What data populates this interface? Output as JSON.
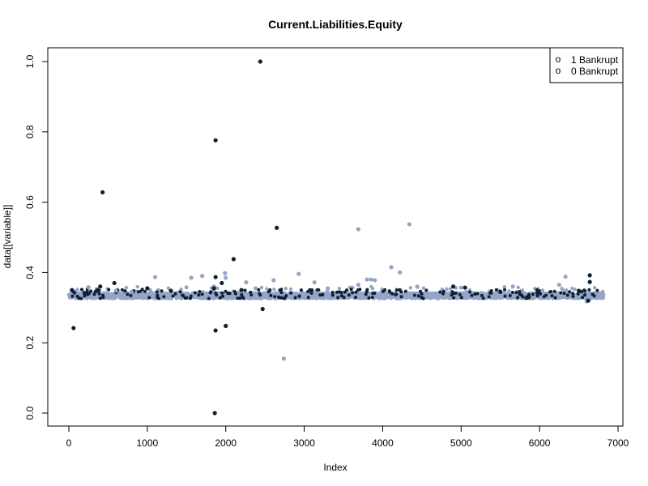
{
  "chart_data": {
    "type": "scatter",
    "title": "Current.Liabilities.Equity",
    "xlabel": "Index",
    "ylabel": "data[[variable]]",
    "xlim": [
      0,
      7000
    ],
    "ylim": [
      0,
      1
    ],
    "x_ticks": [
      0,
      1000,
      2000,
      3000,
      4000,
      5000,
      6000,
      7000
    ],
    "y_ticks": [
      0.0,
      0.2,
      0.4,
      0.6,
      0.8,
      1.0
    ],
    "y_tick_labels": [
      "0.0",
      "0.2",
      "0.4",
      "0.6",
      "0.8",
      "1.0"
    ],
    "grid": false,
    "legend_position": "top-right",
    "legend": [
      {
        "symbol": "o",
        "label": "1 Bankrupt"
      },
      {
        "symbol": "o",
        "label": "0 Bankrupt"
      }
    ],
    "n_points": 6819,
    "series": [
      {
        "label": "0 Bankrupt",
        "color": "#96a5c7",
        "baseline_band": [
          0.326,
          0.342
        ],
        "points": [
          [
            1100,
            0.387
          ],
          [
            1560,
            0.385
          ],
          [
            1700,
            0.39
          ],
          [
            1850,
            0.36
          ],
          [
            1990,
            0.398
          ],
          [
            2000,
            0.385
          ],
          [
            2260,
            0.372
          ],
          [
            2610,
            0.378
          ],
          [
            2740,
            0.155
          ],
          [
            2930,
            0.396
          ],
          [
            3130,
            0.372
          ],
          [
            3300,
            0.355
          ],
          [
            3690,
            0.523
          ],
          [
            3690,
            0.365
          ],
          [
            3800,
            0.38
          ],
          [
            3850,
            0.38
          ],
          [
            3900,
            0.378
          ],
          [
            4110,
            0.415
          ],
          [
            4220,
            0.4
          ],
          [
            4340,
            0.537
          ],
          [
            4440,
            0.36
          ],
          [
            5000,
            0.357
          ],
          [
            5660,
            0.36
          ],
          [
            6330,
            0.388
          ],
          [
            6250,
            0.365
          ],
          [
            6600,
            0.318
          ],
          [
            250,
            0.358
          ],
          [
            600,
            0.348
          ],
          [
            800,
            0.345
          ],
          [
            2380,
            0.355
          ]
        ]
      },
      {
        "label": "1 Bankrupt",
        "color": "#0b2230",
        "points": [
          [
            60,
            0.242
          ],
          [
            40,
            0.35
          ],
          [
            400,
            0.36
          ],
          [
            430,
            0.628
          ],
          [
            580,
            0.37
          ],
          [
            1000,
            0.355
          ],
          [
            1860,
            0.0
          ],
          [
            1870,
            0.235
          ],
          [
            1870,
            0.387
          ],
          [
            1870,
            0.776
          ],
          [
            1850,
            0.355
          ],
          [
            1950,
            0.37
          ],
          [
            2000,
            0.248
          ],
          [
            2100,
            0.438
          ],
          [
            2440,
            1.0
          ],
          [
            2470,
            0.296
          ],
          [
            2650,
            0.527
          ],
          [
            4900,
            0.36
          ],
          [
            5050,
            0.357
          ],
          [
            6500,
            0.348
          ],
          [
            6620,
            0.32
          ],
          [
            6640,
            0.392
          ],
          [
            6640,
            0.373
          ],
          [
            200,
            0.342
          ],
          [
            1300,
            0.348
          ],
          [
            2200,
            0.35
          ],
          [
            5500,
            0.345
          ]
        ]
      }
    ]
  }
}
